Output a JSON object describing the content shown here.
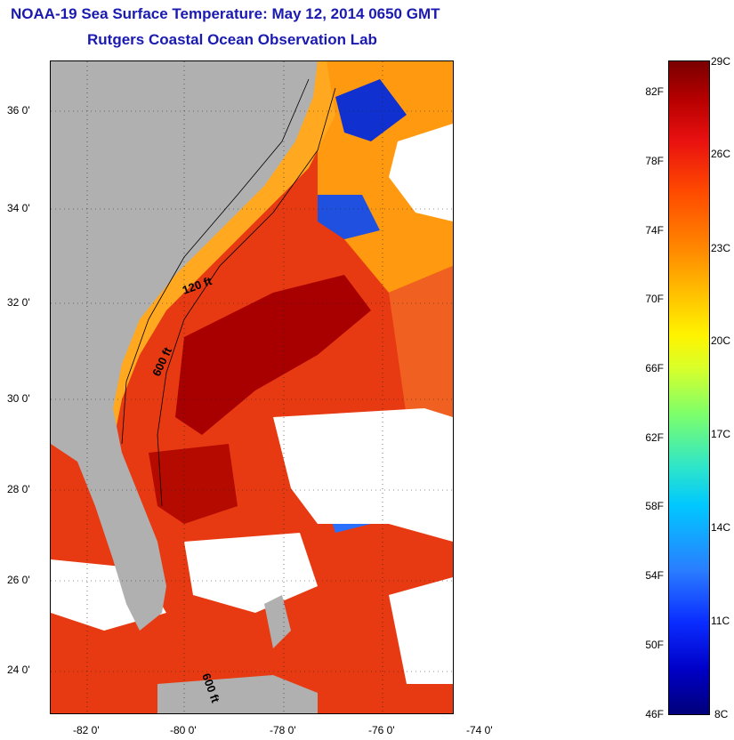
{
  "header": {
    "title": "NOAA-19 Sea Surface Temperature:  May 12, 2014 0650 GMT",
    "subtitle": "Rutgers Coastal Ocean Observation Lab"
  },
  "map": {
    "latitude_labels": [
      "36 0'",
      "34 0'",
      "32 0'",
      "30 0'",
      "28 0'",
      "26 0'",
      "24 0'"
    ],
    "longitude_labels": [
      "-82 0'",
      "-80 0'",
      "-78 0'",
      "-76 0'",
      "-74 0'"
    ],
    "contour_labels": [
      "120 ft",
      "600 ft",
      "600 ft"
    ],
    "colors": {
      "land": "#b0b0b0",
      "cloud_mask": "#ffffff",
      "warm_water": "#e83010",
      "hot_water": "#a80000",
      "cool_water": "#ffb000",
      "cold_water": "#1030d0"
    }
  },
  "colorbar": {
    "fahrenheit_labels": [
      "82F",
      "78F",
      "74F",
      "70F",
      "66F",
      "62F",
      "58F",
      "54F",
      "50F",
      "46F"
    ],
    "celsius_labels": [
      "29C",
      "26C",
      "23C",
      "20C",
      "17C",
      "14C",
      "11C",
      "8C"
    ]
  }
}
